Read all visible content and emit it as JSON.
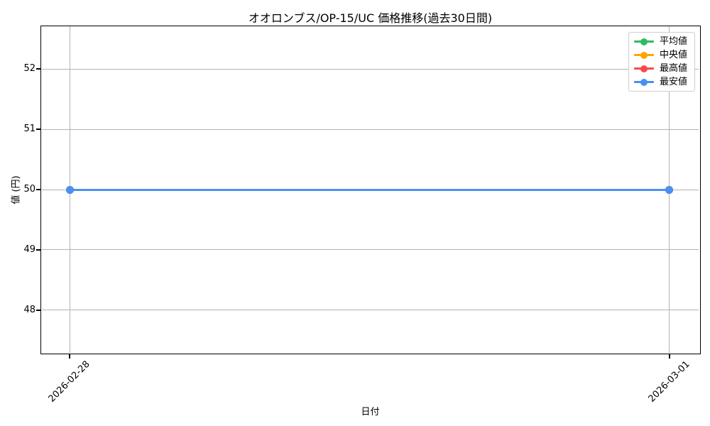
{
  "chart_data": {
    "type": "line",
    "title": "オオロンブス/OP-15/UC 価格推移(過去30日間)",
    "xlabel": "日付",
    "ylabel": "値 (円)",
    "x_tick_labels": [
      "2026-02-28",
      "2026-03-01"
    ],
    "y_ticks": [
      52,
      51,
      50,
      49,
      48
    ],
    "ylim": [
      47.29,
      52.71
    ],
    "grid": true,
    "marker": "circle",
    "legend_position": "upper right",
    "series": [
      {
        "name": "平均値",
        "color": "#2ebd5e",
        "values": [
          50,
          50
        ]
      },
      {
        "name": "中央値",
        "color": "#ffa502",
        "values": [
          50,
          50
        ]
      },
      {
        "name": "最高値",
        "color": "#f64b4b",
        "values": [
          50,
          50
        ]
      },
      {
        "name": "最安値",
        "color": "#4a90f2",
        "values": [
          50,
          50
        ]
      }
    ],
    "colors": {
      "grid": "#b3b3b3",
      "spine": "#000000",
      "text": "#000000",
      "legend_border": "#cfcfcf"
    }
  }
}
